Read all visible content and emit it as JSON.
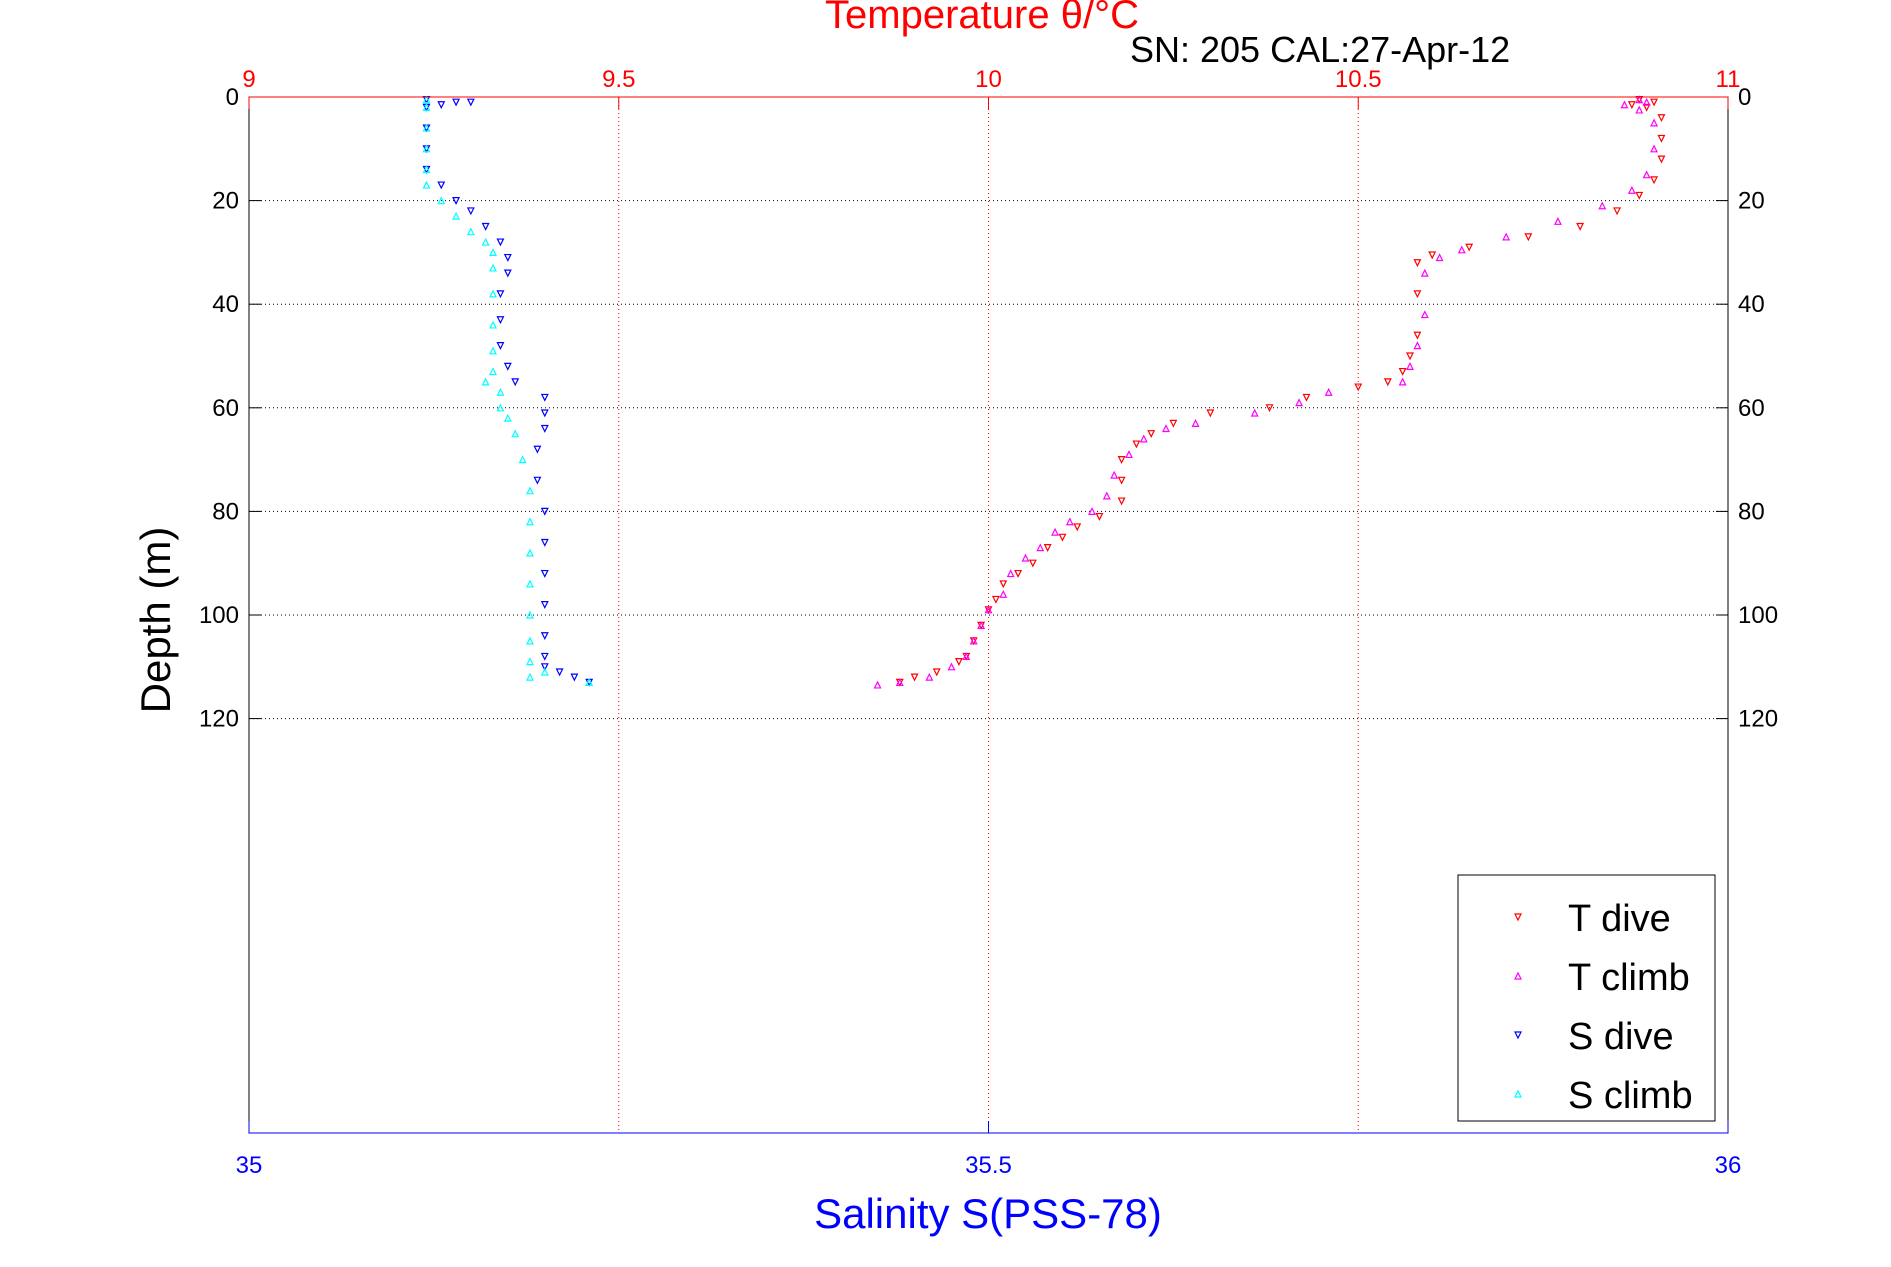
{
  "chart_data": {
    "type": "scatter",
    "title": "Temperature θ/°C",
    "subtitle": "SN: 205  CAL:27-Apr-12",
    "ylabel": "Depth (m)",
    "xlabel": "Salinity S(PSS-78)",
    "y_axis": {
      "label": "Depth (m)",
      "lim": [
        0,
        200
      ],
      "reversed": true,
      "ticks": [
        "0",
        "20",
        "40",
        "60",
        "80",
        "100",
        "120"
      ],
      "tick_values": [
        0,
        20,
        40,
        60,
        80,
        100,
        120
      ],
      "grid": true
    },
    "x_top": {
      "label": "Temperature θ/°C",
      "lim": [
        9,
        11
      ],
      "ticks": [
        "9",
        "9.5",
        "10",
        "10.5",
        "11"
      ],
      "tick_values": [
        9,
        9.5,
        10,
        10.5,
        11
      ],
      "color": "#ff0000",
      "grid": true
    },
    "x_bottom": {
      "label": "Salinity S(PSS-78)",
      "lim": [
        35,
        36
      ],
      "ticks": [
        "35",
        "35.5",
        "36"
      ],
      "tick_values": [
        35,
        35.5,
        36
      ],
      "color": "#0000ff"
    },
    "legend": {
      "position": "bottom-right"
    },
    "series": [
      {
        "name": "T dive",
        "axis": "top",
        "color": "#ff0000",
        "marker": "down",
        "points": [
          [
            10.88,
            0.5
          ],
          [
            10.9,
            1
          ],
          [
            10.87,
            1.5
          ],
          [
            10.89,
            2
          ],
          [
            10.91,
            4
          ],
          [
            10.91,
            8
          ],
          [
            10.91,
            12
          ],
          [
            10.9,
            16
          ],
          [
            10.88,
            19
          ],
          [
            10.85,
            22
          ],
          [
            10.8,
            25
          ],
          [
            10.73,
            27
          ],
          [
            10.65,
            29
          ],
          [
            10.6,
            30.5
          ],
          [
            10.58,
            32
          ],
          [
            10.58,
            38
          ],
          [
            10.58,
            46
          ],
          [
            10.57,
            50
          ],
          [
            10.56,
            53
          ],
          [
            10.54,
            55
          ],
          [
            10.5,
            56
          ],
          [
            10.43,
            58
          ],
          [
            10.38,
            60
          ],
          [
            10.3,
            61
          ],
          [
            10.25,
            63
          ],
          [
            10.22,
            65
          ],
          [
            10.2,
            67
          ],
          [
            10.18,
            70
          ],
          [
            10.18,
            74
          ],
          [
            10.18,
            78
          ],
          [
            10.15,
            81
          ],
          [
            10.12,
            83
          ],
          [
            10.1,
            85
          ],
          [
            10.08,
            87
          ],
          [
            10.06,
            90
          ],
          [
            10.04,
            92
          ],
          [
            10.02,
            94
          ],
          [
            10.01,
            97
          ],
          [
            10.0,
            99
          ],
          [
            9.99,
            102
          ],
          [
            9.98,
            105
          ],
          [
            9.97,
            108
          ],
          [
            9.96,
            109
          ],
          [
            9.93,
            111
          ],
          [
            9.9,
            112
          ],
          [
            9.88,
            113
          ]
        ]
      },
      {
        "name": "T climb",
        "axis": "top",
        "color": "#ff00ff",
        "marker": "up",
        "points": [
          [
            10.88,
            0.5
          ],
          [
            10.89,
            1
          ],
          [
            10.86,
            1.5
          ],
          [
            10.88,
            2.5
          ],
          [
            10.9,
            5
          ],
          [
            10.9,
            10
          ],
          [
            10.89,
            15
          ],
          [
            10.87,
            18
          ],
          [
            10.83,
            21
          ],
          [
            10.77,
            24
          ],
          [
            10.7,
            27
          ],
          [
            10.64,
            29.5
          ],
          [
            10.61,
            31
          ],
          [
            10.59,
            34
          ],
          [
            10.59,
            42
          ],
          [
            10.58,
            48
          ],
          [
            10.57,
            52
          ],
          [
            10.56,
            55
          ],
          [
            10.46,
            57
          ],
          [
            10.42,
            59
          ],
          [
            10.36,
            61
          ],
          [
            10.28,
            63
          ],
          [
            10.24,
            64
          ],
          [
            10.21,
            66
          ],
          [
            10.19,
            69
          ],
          [
            10.17,
            73
          ],
          [
            10.16,
            77
          ],
          [
            10.14,
            80
          ],
          [
            10.11,
            82
          ],
          [
            10.09,
            84
          ],
          [
            10.07,
            87
          ],
          [
            10.05,
            89
          ],
          [
            10.03,
            92
          ],
          [
            10.02,
            96
          ],
          [
            10.0,
            99
          ],
          [
            9.99,
            102
          ],
          [
            9.98,
            105
          ],
          [
            9.97,
            108
          ],
          [
            9.95,
            110
          ],
          [
            9.92,
            112
          ],
          [
            9.88,
            113
          ],
          [
            9.85,
            113.5
          ]
        ]
      },
      {
        "name": "S dive",
        "axis": "bottom",
        "color": "#0000ff",
        "marker": "down",
        "points": [
          [
            35.12,
            0.5
          ],
          [
            35.14,
            1
          ],
          [
            35.13,
            1.5
          ],
          [
            35.15,
            1
          ],
          [
            35.12,
            2
          ],
          [
            35.12,
            6
          ],
          [
            35.12,
            10
          ],
          [
            35.12,
            14
          ],
          [
            35.13,
            17
          ],
          [
            35.14,
            20
          ],
          [
            35.15,
            22
          ],
          [
            35.16,
            25
          ],
          [
            35.17,
            28
          ],
          [
            35.175,
            31
          ],
          [
            35.175,
            34
          ],
          [
            35.17,
            38
          ],
          [
            35.17,
            43
          ],
          [
            35.17,
            48
          ],
          [
            35.175,
            52
          ],
          [
            35.18,
            55
          ],
          [
            35.2,
            58
          ],
          [
            35.2,
            61
          ],
          [
            35.2,
            64
          ],
          [
            35.195,
            68
          ],
          [
            35.195,
            74
          ],
          [
            35.2,
            80
          ],
          [
            35.2,
            86
          ],
          [
            35.2,
            92
          ],
          [
            35.2,
            98
          ],
          [
            35.2,
            104
          ],
          [
            35.2,
            108
          ],
          [
            35.2,
            110
          ],
          [
            35.21,
            111
          ],
          [
            35.22,
            112
          ],
          [
            35.23,
            113
          ]
        ]
      },
      {
        "name": "S climb",
        "axis": "bottom",
        "color": "#00ffff",
        "marker": "up",
        "points": [
          [
            35.12,
            0.5
          ],
          [
            35.12,
            2
          ],
          [
            35.12,
            6
          ],
          [
            35.12,
            10
          ],
          [
            35.12,
            14
          ],
          [
            35.12,
            17
          ],
          [
            35.13,
            20
          ],
          [
            35.14,
            23
          ],
          [
            35.15,
            26
          ],
          [
            35.16,
            28
          ],
          [
            35.165,
            30
          ],
          [
            35.165,
            33
          ],
          [
            35.165,
            38
          ],
          [
            35.165,
            44
          ],
          [
            35.165,
            49
          ],
          [
            35.165,
            53
          ],
          [
            35.16,
            55
          ],
          [
            35.17,
            57
          ],
          [
            35.17,
            60
          ],
          [
            35.175,
            62
          ],
          [
            35.18,
            65
          ],
          [
            35.185,
            70
          ],
          [
            35.19,
            76
          ],
          [
            35.19,
            82
          ],
          [
            35.19,
            88
          ],
          [
            35.19,
            94
          ],
          [
            35.19,
            100
          ],
          [
            35.19,
            105
          ],
          [
            35.19,
            109
          ],
          [
            35.2,
            111
          ],
          [
            35.19,
            112
          ],
          [
            35.23,
            113
          ]
        ]
      }
    ]
  }
}
